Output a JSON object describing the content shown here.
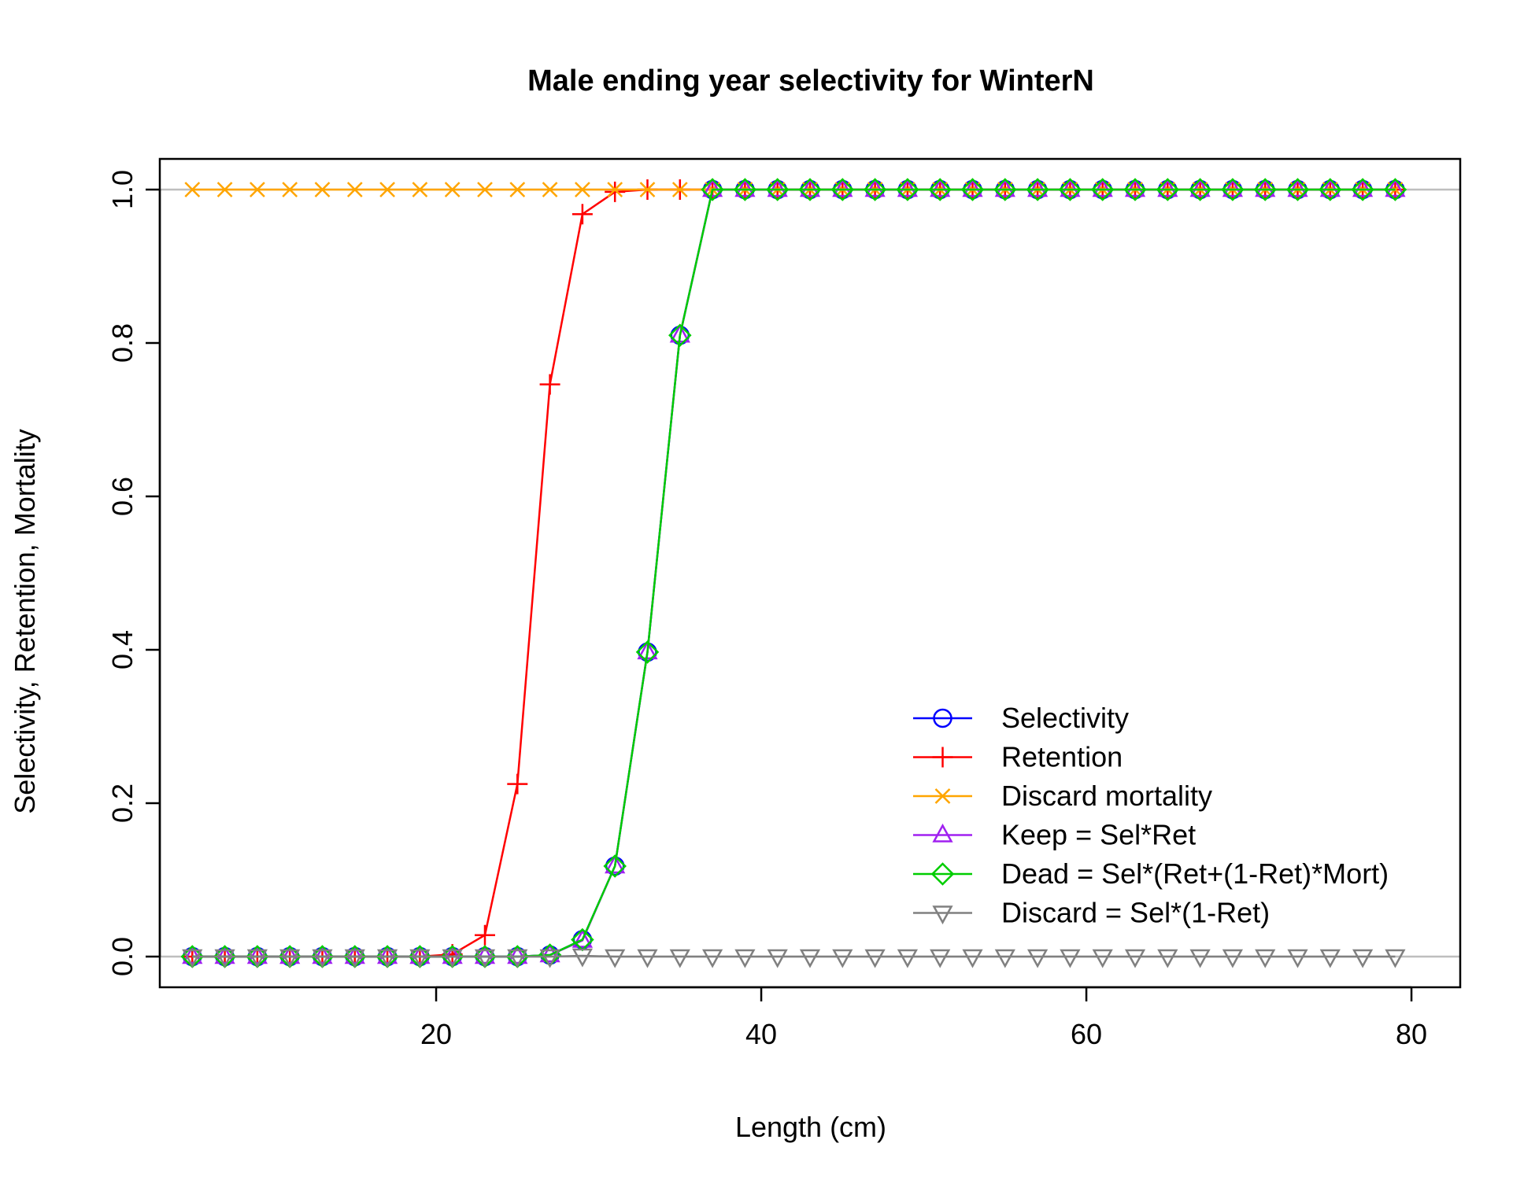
{
  "chart_data": {
    "type": "line",
    "title": "Male ending year selectivity for WinterN",
    "xlabel": "Length (cm)",
    "ylabel": "Selectivity, Retention, Mortality",
    "xlim": [
      3,
      83
    ],
    "ylim": [
      -0.04,
      1.04
    ],
    "xticks": [
      20,
      40,
      60,
      80
    ],
    "yticks": [
      0.0,
      0.2,
      0.4,
      0.6,
      0.8,
      1.0
    ],
    "xtick_labels": [
      "20",
      "40",
      "60",
      "80"
    ],
    "ytick_labels": [
      "0.0",
      "0.2",
      "0.4",
      "0.6",
      "0.8",
      "1.0"
    ],
    "reference_lines": [
      0,
      1
    ],
    "legend_position": "bottom-right",
    "x": [
      5,
      7,
      9,
      11,
      13,
      15,
      17,
      19,
      21,
      23,
      25,
      27,
      29,
      31,
      33,
      35,
      37,
      39,
      41,
      43,
      45,
      47,
      49,
      51,
      53,
      55,
      57,
      59,
      61,
      63,
      65,
      67,
      69,
      71,
      73,
      75,
      77,
      79
    ],
    "series": [
      {
        "name": "Selectivity",
        "color": "#0000ff",
        "marker": "circle",
        "values": [
          0,
          0,
          0,
          0,
          0,
          0,
          0,
          0,
          0,
          0,
          0,
          0.002,
          0.022,
          0.118,
          0.397,
          0.81,
          1,
          1,
          1,
          1,
          1,
          1,
          1,
          1,
          1,
          1,
          1,
          1,
          1,
          1,
          1,
          1,
          1,
          1,
          1,
          1,
          1,
          1
        ]
      },
      {
        "name": "Retention",
        "color": "#ff0000",
        "marker": "plus",
        "values": [
          0,
          0,
          0,
          0,
          0,
          0,
          0,
          0,
          0.003,
          0.028,
          0.225,
          0.746,
          0.968,
          0.997,
          1,
          1,
          1,
          1,
          1,
          1,
          1,
          1,
          1,
          1,
          1,
          1,
          1,
          1,
          1,
          1,
          1,
          1,
          1,
          1,
          1,
          1,
          1,
          1
        ]
      },
      {
        "name": "Discard mortality",
        "color": "#ffa500",
        "marker": "cross",
        "values": [
          1,
          1,
          1,
          1,
          1,
          1,
          1,
          1,
          1,
          1,
          1,
          1,
          1,
          1,
          1,
          1,
          1,
          1,
          1,
          1,
          1,
          1,
          1,
          1,
          1,
          1,
          1,
          1,
          1,
          1,
          1,
          1,
          1,
          1,
          1,
          1,
          1,
          1
        ]
      },
      {
        "name": "Keep = Sel*Ret",
        "color": "#a020f0",
        "marker": "triangle-up",
        "values": [
          0,
          0,
          0,
          0,
          0,
          0,
          0,
          0,
          0,
          0,
          0,
          0.002,
          0.021,
          0.118,
          0.397,
          0.81,
          1,
          1,
          1,
          1,
          1,
          1,
          1,
          1,
          1,
          1,
          1,
          1,
          1,
          1,
          1,
          1,
          1,
          1,
          1,
          1,
          1,
          1
        ]
      },
      {
        "name": "Dead = Sel*(Ret+(1-Ret)*Mort)",
        "color": "#00cd00",
        "marker": "diamond",
        "values": [
          0,
          0,
          0,
          0,
          0,
          0,
          0,
          0,
          0,
          0,
          0,
          0.002,
          0.022,
          0.118,
          0.397,
          0.81,
          1,
          1,
          1,
          1,
          1,
          1,
          1,
          1,
          1,
          1,
          1,
          1,
          1,
          1,
          1,
          1,
          1,
          1,
          1,
          1,
          1,
          1
        ]
      },
      {
        "name": "Discard = Sel*(1-Ret)",
        "color": "#808080",
        "marker": "triangle-down",
        "values": [
          0,
          0,
          0,
          0,
          0,
          0,
          0,
          0,
          0,
          0,
          0,
          0,
          0.001,
          0,
          0,
          0,
          0,
          0,
          0,
          0,
          0,
          0,
          0,
          0,
          0,
          0,
          0,
          0,
          0,
          0,
          0,
          0,
          0,
          0,
          0,
          0,
          0,
          0
        ]
      }
    ]
  }
}
